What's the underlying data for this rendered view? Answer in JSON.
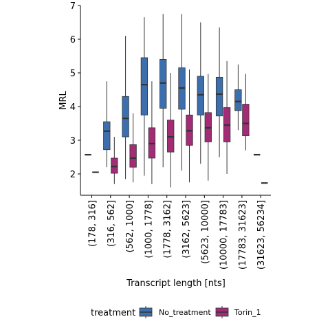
{
  "chart_data": {
    "type": "box",
    "xlabel": "Transcript length [nts]",
    "ylabel": "MRL",
    "ylim": [
      1.3,
      7
    ],
    "yticks": [
      2,
      3,
      4,
      5,
      6,
      7
    ],
    "categories": [
      "(178, 316]",
      "(316, 562]",
      "(562, 1000]",
      "(1000, 1778]",
      "(1778, 3162]",
      "(3162, 5623]",
      "(5623, 10000]",
      "(10000, 17783]",
      "(17783, 31623]",
      "(31623, 56234]"
    ],
    "legend": {
      "title": "treatment",
      "position": "bottom"
    },
    "series": [
      {
        "name": "No_treatment",
        "color": "#3d6fae",
        "boxes": [
          {
            "min": 2.57,
            "q1": 2.57,
            "median": 2.57,
            "q3": 2.57,
            "max": 2.57
          },
          {
            "min": 2.2,
            "q1": 2.72,
            "median": 3.27,
            "q3": 3.55,
            "max": 4.75
          },
          {
            "min": 1.85,
            "q1": 3.1,
            "median": 3.65,
            "q3": 4.3,
            "max": 6.1
          },
          {
            "min": 1.95,
            "q1": 3.75,
            "median": 4.65,
            "q3": 5.45,
            "max": 6.65
          },
          {
            "min": 2.2,
            "q1": 3.95,
            "median": 4.7,
            "q3": 5.4,
            "max": 6.75
          },
          {
            "min": 2.1,
            "q1": 3.92,
            "median": 4.55,
            "q3": 5.15,
            "max": 6.75
          },
          {
            "min": 2.3,
            "q1": 3.75,
            "median": 4.35,
            "q3": 4.9,
            "max": 6.5
          },
          {
            "min": 2.5,
            "q1": 3.72,
            "median": 4.37,
            "q3": 4.87,
            "max": 6.35
          },
          {
            "min": 3.3,
            "q1": 3.88,
            "median": 4.15,
            "q3": 4.5,
            "max": 5.25
          },
          {
            "min": 2.57,
            "q1": 2.57,
            "median": 2.57,
            "q3": 2.57,
            "max": 2.57
          }
        ]
      },
      {
        "name": "Torin_1",
        "color": "#a22c76",
        "boxes": [
          {
            "min": 2.05,
            "q1": 2.05,
            "median": 2.05,
            "q3": 2.05,
            "max": 2.05
          },
          {
            "min": 1.7,
            "q1": 2.02,
            "median": 2.22,
            "q3": 2.47,
            "max": 3.1
          },
          {
            "min": 1.75,
            "q1": 2.2,
            "median": 2.47,
            "q3": 2.87,
            "max": 3.8
          },
          {
            "min": 1.7,
            "q1": 2.47,
            "median": 2.9,
            "q3": 3.37,
            "max": 4.75
          },
          {
            "min": 1.6,
            "q1": 2.65,
            "median": 3.1,
            "q3": 3.6,
            "max": 5.0
          },
          {
            "min": 1.75,
            "q1": 2.85,
            "median": 3.28,
            "q3": 3.75,
            "max": 5.1
          },
          {
            "min": 1.8,
            "q1": 2.95,
            "median": 3.37,
            "q3": 3.82,
            "max": 4.97
          },
          {
            "min": 2.0,
            "q1": 2.95,
            "median": 3.45,
            "q3": 3.97,
            "max": 5.35
          },
          {
            "min": 2.7,
            "q1": 3.13,
            "median": 3.5,
            "q3": 4.07,
            "max": 4.97
          },
          {
            "min": 1.73,
            "q1": 1.73,
            "median": 1.73,
            "q3": 1.73,
            "max": 1.73
          }
        ]
      }
    ]
  }
}
